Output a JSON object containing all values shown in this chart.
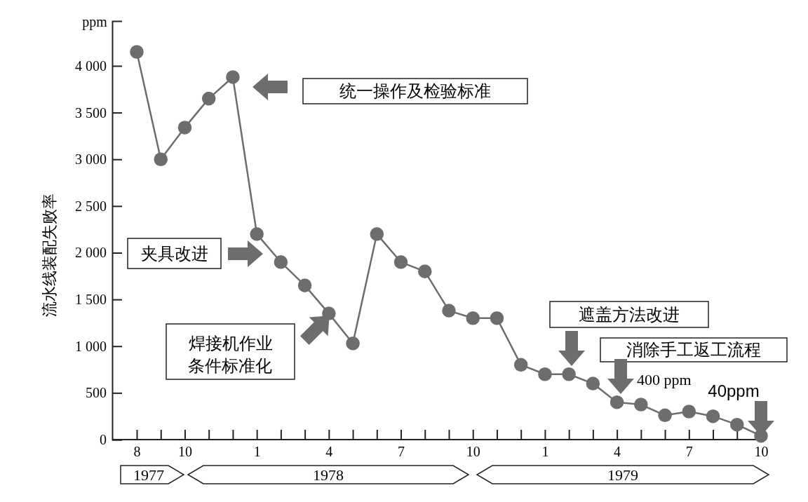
{
  "chart_data": {
    "type": "line",
    "ylabel": "流水线装配失败率",
    "categories": [
      "8",
      null,
      "10",
      null,
      null,
      "1",
      null,
      null,
      "4",
      null,
      null,
      "7",
      null,
      null,
      "10",
      null,
      null,
      "1",
      null,
      null,
      "4",
      null,
      null,
      "7",
      null,
      null,
      "10"
    ],
    "series": [
      {
        "color": "#6d6d6d",
        "values": [
          4150,
          3000,
          3340,
          3650,
          3880,
          2200,
          1900,
          1650,
          1350,
          1030,
          2200,
          1900,
          1800,
          1380,
          1300,
          1300,
          800,
          700,
          700,
          600,
          400,
          375,
          260,
          300,
          250,
          160,
          40
        ]
      }
    ],
    "ylim": [
      0,
      4480
    ],
    "yticks": [
      0,
      500,
      {
        "value": 1000,
        "label": "1 000"
      },
      {
        "value": 1500,
        "label": "1 500"
      },
      {
        "value": 2000,
        "label": "2 000"
      },
      {
        "value": 2500,
        "label": "2 500"
      },
      {
        "value": 3000,
        "label": "3 000"
      },
      {
        "value": 3500,
        "label": "3 500"
      },
      {
        "value": 4000,
        "label": "4 000"
      }
    ],
    "marker": "circle",
    "grid": false,
    "annotations": [
      "ppm",
      "统一操作及检验标准",
      "夹具改进",
      "焊接机作业",
      "条件标准化",
      "遮盖方法改进",
      "消除手工返工流程",
      "400 ppm",
      "40ppm",
      "1977",
      "1978",
      "1979"
    ]
  }
}
